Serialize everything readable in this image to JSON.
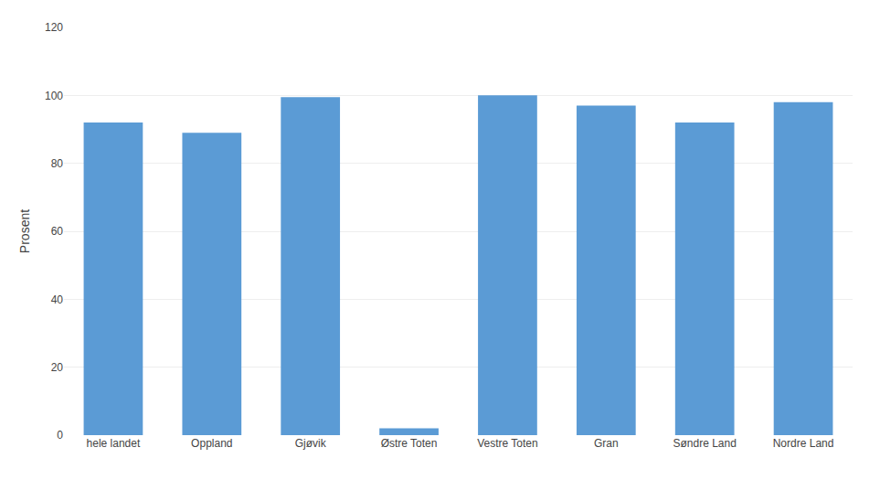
{
  "chart_data": {
    "type": "bar",
    "categories": [
      "hele landet",
      "Oppland",
      "Gjøvik",
      "Østre Toten",
      "Vestre Toten",
      "Gran",
      "Søndre Land",
      "Nordre Land"
    ],
    "values": [
      92,
      89,
      99.5,
      2,
      100,
      97,
      92,
      98
    ],
    "color": "#5B9BD5",
    "ylabel": "Prosent",
    "ylim": [
      0,
      120
    ],
    "yticks": [
      0,
      20,
      40,
      60,
      80,
      100,
      120
    ],
    "grid": true
  }
}
